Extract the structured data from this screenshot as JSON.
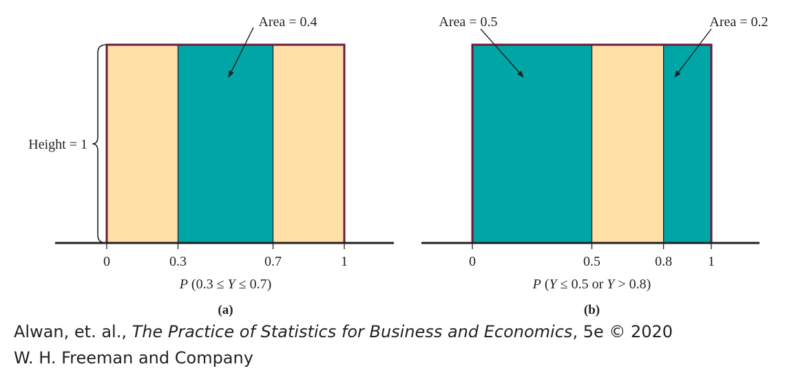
{
  "colors": {
    "teal": "#00a6a6",
    "tan": "#ffe0a6",
    "border": "#6b1a3e",
    "axis": "#231f20"
  },
  "chart_data": [
    {
      "type": "area",
      "panel": "(a)",
      "title": "P (0.3 ≤ Y ≤ 0.7)",
      "title_parts": {
        "p": "P",
        "pre": " (0.3 ≤ ",
        "var": "Y",
        "post": " ≤ 0.7)"
      },
      "xlim": [
        0,
        1
      ],
      "ylim": [
        0,
        1
      ],
      "density_height": 1,
      "height_label": "Height = 1",
      "ticks": [
        "0",
        "0.3",
        "0.7",
        "1"
      ],
      "tick_values": [
        0,
        0.3,
        0.7,
        1
      ],
      "segments": [
        {
          "from": 0,
          "to": 0.3,
          "shaded": false
        },
        {
          "from": 0.3,
          "to": 0.7,
          "shaded": true
        },
        {
          "from": 0.7,
          "to": 1,
          "shaded": false
        }
      ],
      "annotations": [
        {
          "text": "Area = 0.4",
          "points_to": 0.5
        }
      ]
    },
    {
      "type": "area",
      "panel": "(b)",
      "title": "P (Y ≤ 0.5 or Y > 0.8)",
      "title_parts": {
        "p": "P",
        "pre": " (",
        "var": "Y",
        "post": " ≤ 0.5 or ",
        "var2": "Y",
        "post2": " > 0.8)"
      },
      "xlim": [
        0,
        1
      ],
      "ylim": [
        0,
        1
      ],
      "density_height": 1,
      "ticks": [
        "0",
        "0.5",
        "0.8",
        "1"
      ],
      "tick_values": [
        0,
        0.5,
        0.8,
        1
      ],
      "segments": [
        {
          "from": 0,
          "to": 0.5,
          "shaded": true
        },
        {
          "from": 0.5,
          "to": 0.8,
          "shaded": false
        },
        {
          "from": 0.8,
          "to": 1,
          "shaded": true
        }
      ],
      "annotations": [
        {
          "text": "Area = 0.5",
          "points_to": 0.25
        },
        {
          "text": "Area = 0.2",
          "points_to": 0.9
        }
      ]
    }
  ],
  "credit": {
    "line1_pre": "Alwan, et. al., ",
    "line1_title": "The Practice of Statistics for Business and Economics",
    "line1_post": ", 5e © 2020",
    "line2": "W. H. Freeman and Company"
  }
}
